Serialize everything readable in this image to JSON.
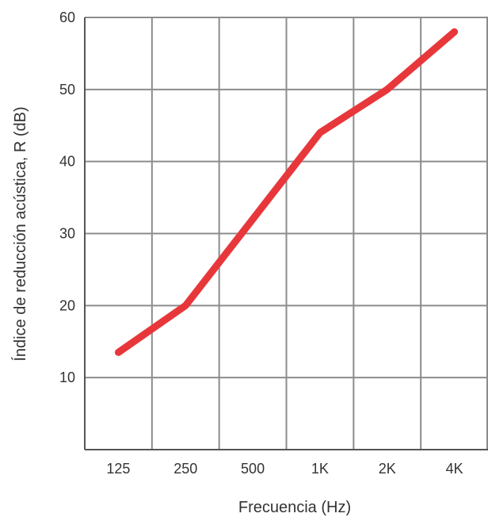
{
  "chart_data": {
    "type": "line",
    "title": "",
    "xlabel": "Frecuencia (Hz)",
    "ylabel": "Índice de reducción acústica, R (dB)",
    "categories": [
      "125",
      "250",
      "500",
      "1K",
      "2K",
      "4K"
    ],
    "yticks": [
      "10",
      "20",
      "30",
      "40",
      "50",
      "60"
    ],
    "ylim": [
      0,
      60
    ],
    "grid": true,
    "series": [
      {
        "values": [
          13.5,
          20,
          32,
          44,
          50,
          58
        ]
      }
    ],
    "colors": {
      "line": "#e8373a",
      "grid": "#8c8c8c",
      "axis": "#555555"
    }
  }
}
